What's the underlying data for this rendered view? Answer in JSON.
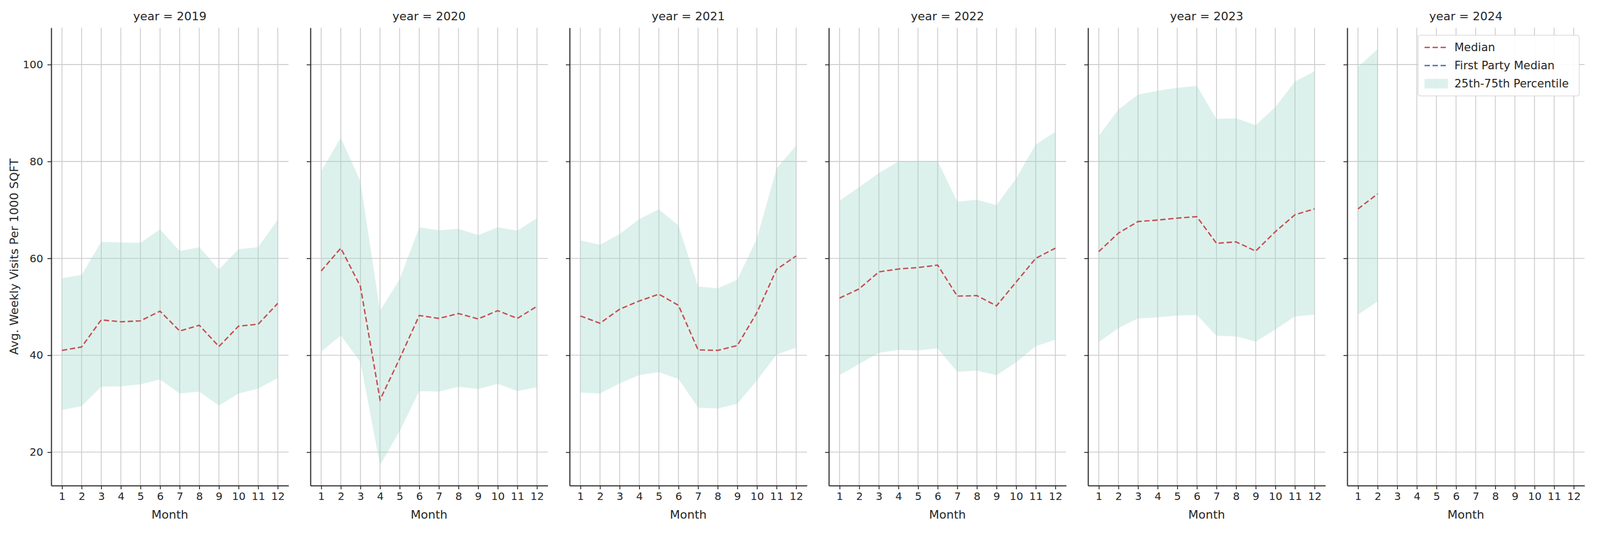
{
  "chart_data": [
    {
      "type": "line",
      "title": "year = 2019",
      "xlabel": "Month",
      "ylabel": "Avg. Weekly Visits Per 1000 SQFT",
      "x": [
        1,
        2,
        3,
        4,
        5,
        6,
        7,
        8,
        9,
        10,
        11,
        12
      ],
      "xlim": [
        0.45,
        12.55
      ],
      "xticks": [
        1,
        2,
        3,
        4,
        5,
        6,
        7,
        8,
        9,
        10,
        11,
        12
      ],
      "ylim": [
        13.1,
        107.6
      ],
      "yticks": [
        20,
        40,
        60,
        80,
        100
      ],
      "grid": true,
      "series": [
        {
          "name": "Median",
          "color": "#c44e52",
          "line_style": "dashed",
          "values": [
            41,
            41.7,
            47.3,
            46.9,
            47.1,
            49.1,
            45,
            46.2,
            41.8,
            46,
            46.4,
            50.7
          ]
        },
        {
          "name": "First Party Median",
          "color": "#4c72b0",
          "line_style": "dashed",
          "values": [
            null,
            null,
            null,
            null,
            null,
            null,
            null,
            null,
            null,
            null,
            null,
            null
          ]
        },
        {
          "name": "25th-75th Percentile",
          "type": "band",
          "color": "#9fd8c9",
          "lower": [
            28.7,
            29.5,
            33.5,
            33.6,
            34,
            35,
            32.1,
            32.5,
            29.6,
            32.1,
            33.1,
            35.3
          ],
          "upper": [
            55.9,
            56.6,
            63.4,
            63.3,
            63.2,
            66,
            61.5,
            62.3,
            57.7,
            61.9,
            62.3,
            68
          ]
        }
      ]
    },
    {
      "type": "line",
      "title": "year = 2020",
      "xlabel": "Month",
      "tick_labels": "x",
      "x": [
        1,
        2,
        3,
        4,
        5,
        6,
        7,
        8,
        9,
        10,
        11,
        12
      ],
      "xlim": [
        0.45,
        12.55
      ],
      "xticks": [
        1,
        2,
        3,
        4,
        5,
        6,
        7,
        8,
        9,
        10,
        11,
        12
      ],
      "ylim": [
        13.1,
        107.6
      ],
      "yticks": [
        20,
        40,
        60,
        80,
        100
      ],
      "grid": true,
      "series": [
        {
          "name": "Median",
          "color": "#c44e52",
          "line_style": "dashed",
          "values": [
            57.4,
            62.1,
            54.2,
            30.8,
            39.3,
            48.2,
            47.6,
            48.6,
            47.5,
            49.2,
            47.6,
            50.1
          ]
        },
        {
          "name": "First Party Median",
          "color": "#4c72b0",
          "line_style": "dashed",
          "values": [
            null,
            null,
            null,
            null,
            null,
            null,
            null,
            null,
            null,
            null,
            null,
            null
          ]
        },
        {
          "name": "25th-75th Percentile",
          "type": "band",
          "color": "#9fd8c9",
          "lower": [
            40.7,
            44.1,
            38.6,
            17.3,
            24.3,
            32.6,
            32.5,
            33.5,
            33,
            34.1,
            32.6,
            33.4
          ],
          "upper": [
            78,
            84.9,
            75.9,
            49.2,
            55.7,
            66.4,
            65.8,
            66.1,
            64.8,
            66.4,
            65.7,
            68.3
          ]
        }
      ]
    },
    {
      "type": "line",
      "title": "year = 2021",
      "xlabel": "Month",
      "tick_labels": "x",
      "x": [
        1,
        2,
        3,
        4,
        5,
        6,
        7,
        8,
        9,
        10,
        11,
        12
      ],
      "xlim": [
        0.45,
        12.55
      ],
      "xticks": [
        1,
        2,
        3,
        4,
        5,
        6,
        7,
        8,
        9,
        10,
        11,
        12
      ],
      "ylim": [
        13.1,
        107.6
      ],
      "yticks": [
        20,
        40,
        60,
        80,
        100
      ],
      "grid": true,
      "series": [
        {
          "name": "Median",
          "color": "#c44e52",
          "line_style": "dashed",
          "values": [
            48.1,
            46.6,
            49.5,
            51.2,
            52.6,
            50.3,
            41.1,
            41,
            42,
            48.8,
            57.7,
            60.5
          ]
        },
        {
          "name": "First Party Median",
          "color": "#4c72b0",
          "line_style": "dashed",
          "values": [
            null,
            null,
            null,
            null,
            null,
            null,
            null,
            null,
            null,
            null,
            null,
            null
          ]
        },
        {
          "name": "25th-75th Percentile",
          "type": "band",
          "color": "#9fd8c9",
          "lower": [
            32.3,
            32.1,
            34.2,
            35.9,
            36.5,
            35.1,
            29.2,
            29,
            30,
            34.8,
            40.1,
            41.6
          ],
          "upper": [
            63.7,
            62.8,
            65,
            68.1,
            70.1,
            66.8,
            54.2,
            53.8,
            55.6,
            64.1,
            78.5,
            83.3
          ]
        }
      ]
    },
    {
      "type": "line",
      "title": "year = 2022",
      "xlabel": "Month",
      "tick_labels": "x",
      "x": [
        1,
        2,
        3,
        4,
        5,
        6,
        7,
        8,
        9,
        10,
        11,
        12
      ],
      "xlim": [
        0.45,
        12.55
      ],
      "xticks": [
        1,
        2,
        3,
        4,
        5,
        6,
        7,
        8,
        9,
        10,
        11,
        12
      ],
      "ylim": [
        13.1,
        107.6
      ],
      "yticks": [
        20,
        40,
        60,
        80,
        100
      ],
      "grid": true,
      "series": [
        {
          "name": "Median",
          "color": "#c44e52",
          "line_style": "dashed",
          "values": [
            51.8,
            53.7,
            57.2,
            57.8,
            58.1,
            58.6,
            52.2,
            52.3,
            50.2,
            55.1,
            60,
            62.1
          ]
        },
        {
          "name": "First Party Median",
          "color": "#4c72b0",
          "line_style": "dashed",
          "values": [
            null,
            null,
            null,
            null,
            null,
            null,
            null,
            null,
            null,
            null,
            null,
            null
          ]
        },
        {
          "name": "25th-75th Percentile",
          "type": "band",
          "color": "#9fd8c9",
          "lower": [
            35.9,
            38.2,
            40.5,
            41.1,
            41,
            41.4,
            36.6,
            36.8,
            35.9,
            38.5,
            41.9,
            43.2
          ],
          "upper": [
            71.9,
            74.7,
            77.6,
            80,
            80,
            80.1,
            71.7,
            72.1,
            71,
            76.5,
            83.5,
            86.1
          ]
        }
      ]
    },
    {
      "type": "line",
      "title": "year = 2023",
      "xlabel": "Month",
      "tick_labels": "x",
      "x": [
        1,
        2,
        3,
        4,
        5,
        6,
        7,
        8,
        9,
        10,
        11,
        12
      ],
      "xlim": [
        0.45,
        12.55
      ],
      "xticks": [
        1,
        2,
        3,
        4,
        5,
        6,
        7,
        8,
        9,
        10,
        11,
        12
      ],
      "ylim": [
        13.1,
        107.6
      ],
      "yticks": [
        20,
        40,
        60,
        80,
        100
      ],
      "grid": true,
      "series": [
        {
          "name": "Median",
          "color": "#c44e52",
          "line_style": "dashed",
          "values": [
            61.4,
            65.2,
            67.6,
            67.9,
            68.3,
            68.6,
            63.1,
            63.4,
            61.5,
            65.5,
            69,
            70.2
          ]
        },
        {
          "name": "First Party Median",
          "color": "#4c72b0",
          "line_style": "dashed",
          "values": [
            null,
            null,
            null,
            null,
            null,
            null,
            null,
            null,
            null,
            null,
            null,
            null
          ]
        },
        {
          "name": "25th-75th Percentile",
          "type": "band",
          "color": "#9fd8c9",
          "lower": [
            42.7,
            45.6,
            47.6,
            47.8,
            48.2,
            48.3,
            44,
            43.9,
            42.8,
            45.3,
            48,
            48.4
          ],
          "upper": [
            85.3,
            90.7,
            93.8,
            94.6,
            95.2,
            95.6,
            88.8,
            88.9,
            87.5,
            91.2,
            96.5,
            98.6
          ]
        }
      ]
    },
    {
      "type": "line",
      "title": "year = 2024",
      "xlabel": "Month",
      "tick_labels": "x",
      "legend": "upper right",
      "x": [
        1,
        2,
        3,
        4,
        5,
        6,
        7,
        8,
        9,
        10,
        11,
        12
      ],
      "xlim": [
        0.45,
        12.55
      ],
      "xticks": [
        1,
        2,
        3,
        4,
        5,
        6,
        7,
        8,
        9,
        10,
        11,
        12
      ],
      "ylim": [
        13.1,
        107.6
      ],
      "yticks": [
        20,
        40,
        60,
        80,
        100
      ],
      "grid": true,
      "series": [
        {
          "name": "Median",
          "color": "#c44e52",
          "line_style": "dashed",
          "values": [
            70.2,
            73.3,
            null,
            null,
            null,
            null,
            null,
            null,
            null,
            null,
            null,
            null
          ]
        },
        {
          "name": "First Party Median",
          "color": "#4c72b0",
          "line_style": "dashed",
          "values": [
            null,
            null,
            null,
            null,
            null,
            null,
            null,
            null,
            null,
            null,
            null,
            null
          ]
        },
        {
          "name": "25th-75th Percentile",
          "type": "band",
          "color": "#9fd8c9",
          "lower": [
            48.4,
            51.1,
            null,
            null,
            null,
            null,
            null,
            null,
            null,
            null,
            null,
            null
          ],
          "upper": [
            99.5,
            103.2,
            null,
            null,
            null,
            null,
            null,
            null,
            null,
            null,
            null,
            null
          ]
        }
      ]
    }
  ]
}
